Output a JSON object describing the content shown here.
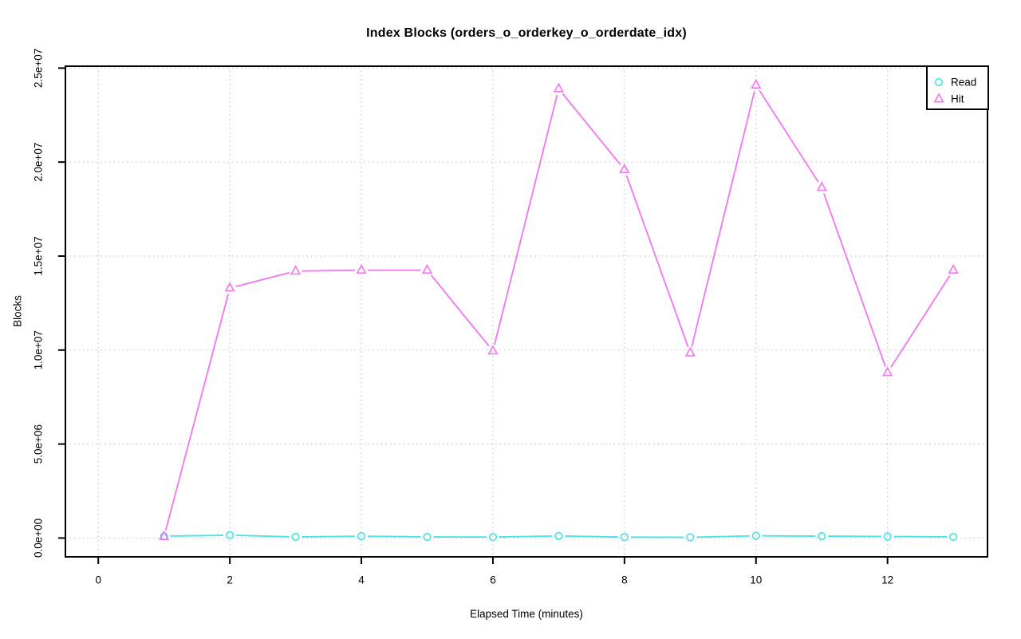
{
  "page": {
    "background": "#ffffff"
  },
  "chart_data": {
    "type": "line",
    "title": "Index Blocks (orders_o_orderkey_o_orderdate_idx)",
    "xlabel": "Elapsed Time (minutes)",
    "ylabel": "Blocks",
    "x": [
      1,
      2,
      3,
      4,
      5,
      6,
      7,
      8,
      9,
      10,
      11,
      12,
      13
    ],
    "series": [
      {
        "name": "Read",
        "marker": "circle",
        "color": "#4DE3E6",
        "values": [
          100000,
          150000,
          60000,
          100000,
          60000,
          50000,
          110000,
          50000,
          40000,
          120000,
          100000,
          80000,
          60000
        ]
      },
      {
        "name": "Hit",
        "marker": "triangle",
        "color": "#F07CF0",
        "values": [
          80000,
          13300000,
          14200000,
          14250000,
          14250000,
          9950000,
          23900000,
          19600000,
          9850000,
          24100000,
          18650000,
          8800000,
          14250000
        ]
      }
    ],
    "xlim": [
      -0.5,
      13.52
    ],
    "ylim": [
      -1000000,
      25100000
    ],
    "xticks": [
      0,
      2,
      4,
      6,
      8,
      10,
      12
    ],
    "xtick_labels": [
      "0",
      "2",
      "4",
      "6",
      "8",
      "10",
      "12"
    ],
    "yticks": [
      0,
      5000000,
      10000000,
      15000000,
      20000000,
      25000000
    ],
    "ytick_labels": [
      "0.0e+00",
      "5.0e+06",
      "1.0e+07",
      "1.5e+07",
      "2.0e+07",
      "2.5e+07"
    ],
    "grid": true,
    "grid_color": "#c8c8c8",
    "axis_color": "#000000",
    "legend": {
      "position": "top-right",
      "items": [
        "Read",
        "Hit"
      ]
    }
  }
}
